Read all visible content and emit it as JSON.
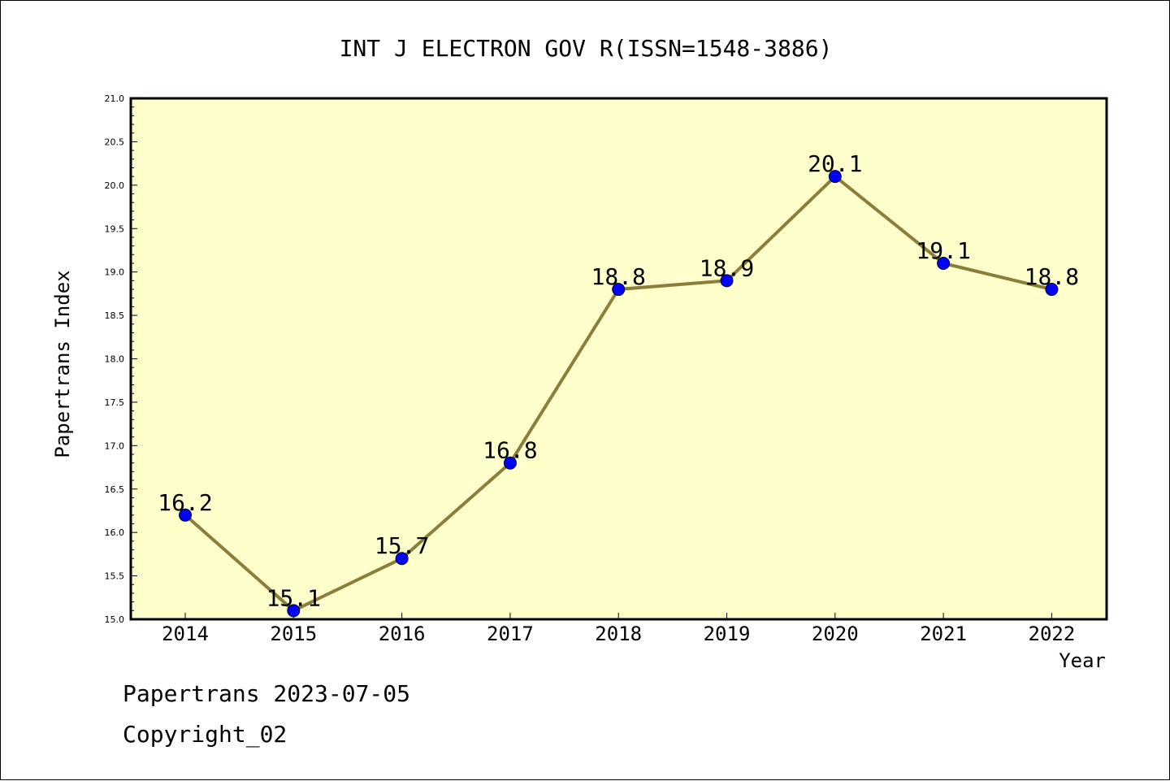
{
  "chart_data": {
    "type": "line",
    "title": "INT J ELECTRON GOV R(ISSN=1548-3886)",
    "xlabel": "Year",
    "ylabel": "Papertrans Index",
    "categories": [
      "2014",
      "2015",
      "2016",
      "2017",
      "2018",
      "2019",
      "2020",
      "2021",
      "2022"
    ],
    "values": [
      16.2,
      15.1,
      15.7,
      16.8,
      18.8,
      18.9,
      20.1,
      19.1,
      18.8
    ],
    "data_labels": [
      "16.2",
      "15.1",
      "15.7",
      "16.8",
      "18.8",
      "18.9",
      "20.1",
      "19.1",
      "18.8"
    ],
    "ylim": [
      15.0,
      21.0
    ],
    "yticks": [
      "15.0",
      "15.5",
      "16.0",
      "16.5",
      "17.0",
      "17.5",
      "18.0",
      "18.5",
      "19.0",
      "19.5",
      "20.0",
      "20.5",
      "21.0"
    ],
    "grid": false,
    "legend": "none",
    "colors": {
      "plot_background": "#ffffcc",
      "line": "#8b7d3a",
      "marker": "#0000ff"
    }
  },
  "footer": {
    "line1": "Papertrans 2023-07-05",
    "line2": "Copyright_02"
  }
}
